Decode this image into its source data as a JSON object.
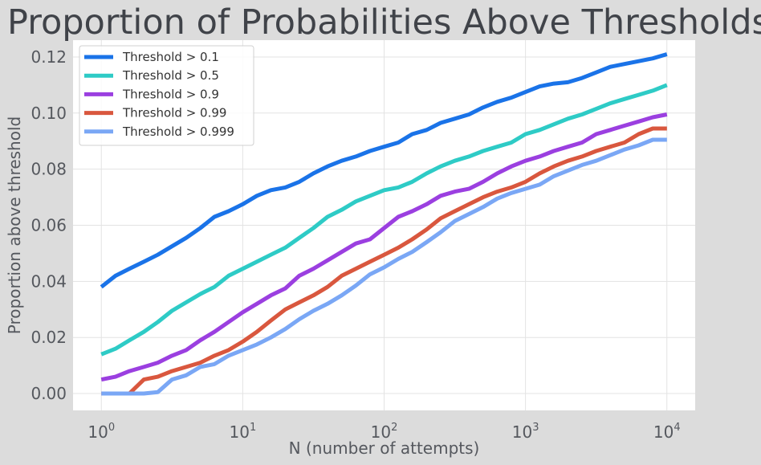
{
  "chart_data": {
    "type": "line",
    "title": "Proportion of Probabilities Above Thresholds",
    "xlabel": "N (number of attempts)",
    "ylabel": "Proportion above threshold",
    "xscale": "log",
    "xlim_exp": [
      -0.2,
      4.2
    ],
    "ylim": [
      -0.006,
      0.126
    ],
    "xticks": [
      {
        "base": "10",
        "exp": "0",
        "value": 1
      },
      {
        "base": "10",
        "exp": "1",
        "value": 10
      },
      {
        "base": "10",
        "exp": "2",
        "value": 100
      },
      {
        "base": "10",
        "exp": "3",
        "value": 1000
      },
      {
        "base": "10",
        "exp": "4",
        "value": 10000
      }
    ],
    "yticks": [
      "0.00",
      "0.02",
      "0.04",
      "0.06",
      "0.08",
      "0.10",
      "0.12"
    ],
    "grid": true,
    "legend_position": "top-left",
    "x": [
      1,
      1.26,
      1.58,
      2,
      2.51,
      3.16,
      3.98,
      5.01,
      6.31,
      7.94,
      10,
      12.6,
      15.8,
      20,
      25.1,
      31.6,
      39.8,
      50.1,
      63.1,
      79.4,
      100,
      126,
      158,
      200,
      251,
      316,
      398,
      501,
      631,
      794,
      1000,
      1259,
      1585,
      1995,
      2512,
      3162,
      3981,
      5012,
      6310,
      7943,
      10000
    ],
    "series": [
      {
        "name": "Threshold > 0.1",
        "color": "#1a73e8",
        "values": [
          0.038,
          0.042,
          0.0445,
          0.047,
          0.0495,
          0.0525,
          0.0555,
          0.059,
          0.063,
          0.065,
          0.0675,
          0.0705,
          0.0725,
          0.0735,
          0.0755,
          0.0785,
          0.081,
          0.083,
          0.0845,
          0.0865,
          0.088,
          0.0895,
          0.0925,
          0.094,
          0.0965,
          0.098,
          0.0995,
          0.102,
          0.104,
          0.1055,
          0.1075,
          0.1095,
          0.1105,
          0.111,
          0.1125,
          0.1145,
          0.1165,
          0.1175,
          0.1185,
          0.1195,
          0.121
        ]
      },
      {
        "name": "Threshold > 0.5",
        "color": "#2ecbc6",
        "values": [
          0.014,
          0.016,
          0.019,
          0.022,
          0.0255,
          0.0295,
          0.0325,
          0.0355,
          0.038,
          0.042,
          0.0445,
          0.047,
          0.0495,
          0.052,
          0.0555,
          0.059,
          0.063,
          0.0655,
          0.0685,
          0.0705,
          0.0725,
          0.0735,
          0.0755,
          0.0785,
          0.081,
          0.083,
          0.0845,
          0.0865,
          0.088,
          0.0895,
          0.0925,
          0.094,
          0.096,
          0.098,
          0.0995,
          0.1015,
          0.1035,
          0.105,
          0.1065,
          0.108,
          0.11
        ]
      },
      {
        "name": "Threshold > 0.9",
        "color": "#9b3fe0",
        "values": [
          0.005,
          0.006,
          0.008,
          0.0095,
          0.011,
          0.0135,
          0.0155,
          0.019,
          0.022,
          0.0255,
          0.029,
          0.032,
          0.035,
          0.0375,
          0.042,
          0.0445,
          0.0475,
          0.0505,
          0.0535,
          0.055,
          0.059,
          0.063,
          0.065,
          0.0675,
          0.0705,
          0.072,
          0.073,
          0.0755,
          0.0785,
          0.081,
          0.083,
          0.0845,
          0.0865,
          0.088,
          0.0895,
          0.0925,
          0.094,
          0.0955,
          0.097,
          0.0985,
          0.0995
        ]
      },
      {
        "name": "Threshold > 0.99",
        "color": "#d9573e",
        "values": [
          0.0,
          0.0,
          0.0,
          0.005,
          0.006,
          0.008,
          0.0095,
          0.011,
          0.0135,
          0.0155,
          0.0185,
          0.022,
          0.026,
          0.03,
          0.0325,
          0.035,
          0.038,
          0.042,
          0.0445,
          0.047,
          0.0495,
          0.052,
          0.055,
          0.0585,
          0.0625,
          0.065,
          0.0675,
          0.07,
          0.072,
          0.0735,
          0.0755,
          0.0785,
          0.081,
          0.083,
          0.0845,
          0.0865,
          0.088,
          0.0895,
          0.0925,
          0.0945,
          0.0945
        ]
      },
      {
        "name": "Threshold > 0.999",
        "color": "#7aa7f5",
        "values": [
          0.0,
          0.0,
          0.0,
          0.0,
          0.0005,
          0.005,
          0.0065,
          0.0095,
          0.0105,
          0.0135,
          0.0155,
          0.0175,
          0.02,
          0.023,
          0.0265,
          0.0295,
          0.032,
          0.035,
          0.0385,
          0.0425,
          0.045,
          0.048,
          0.0505,
          0.054,
          0.0575,
          0.0615,
          0.064,
          0.0665,
          0.0695,
          0.0715,
          0.073,
          0.0745,
          0.0775,
          0.0795,
          0.0815,
          0.083,
          0.085,
          0.087,
          0.0885,
          0.0905,
          0.0905
        ]
      }
    ]
  }
}
